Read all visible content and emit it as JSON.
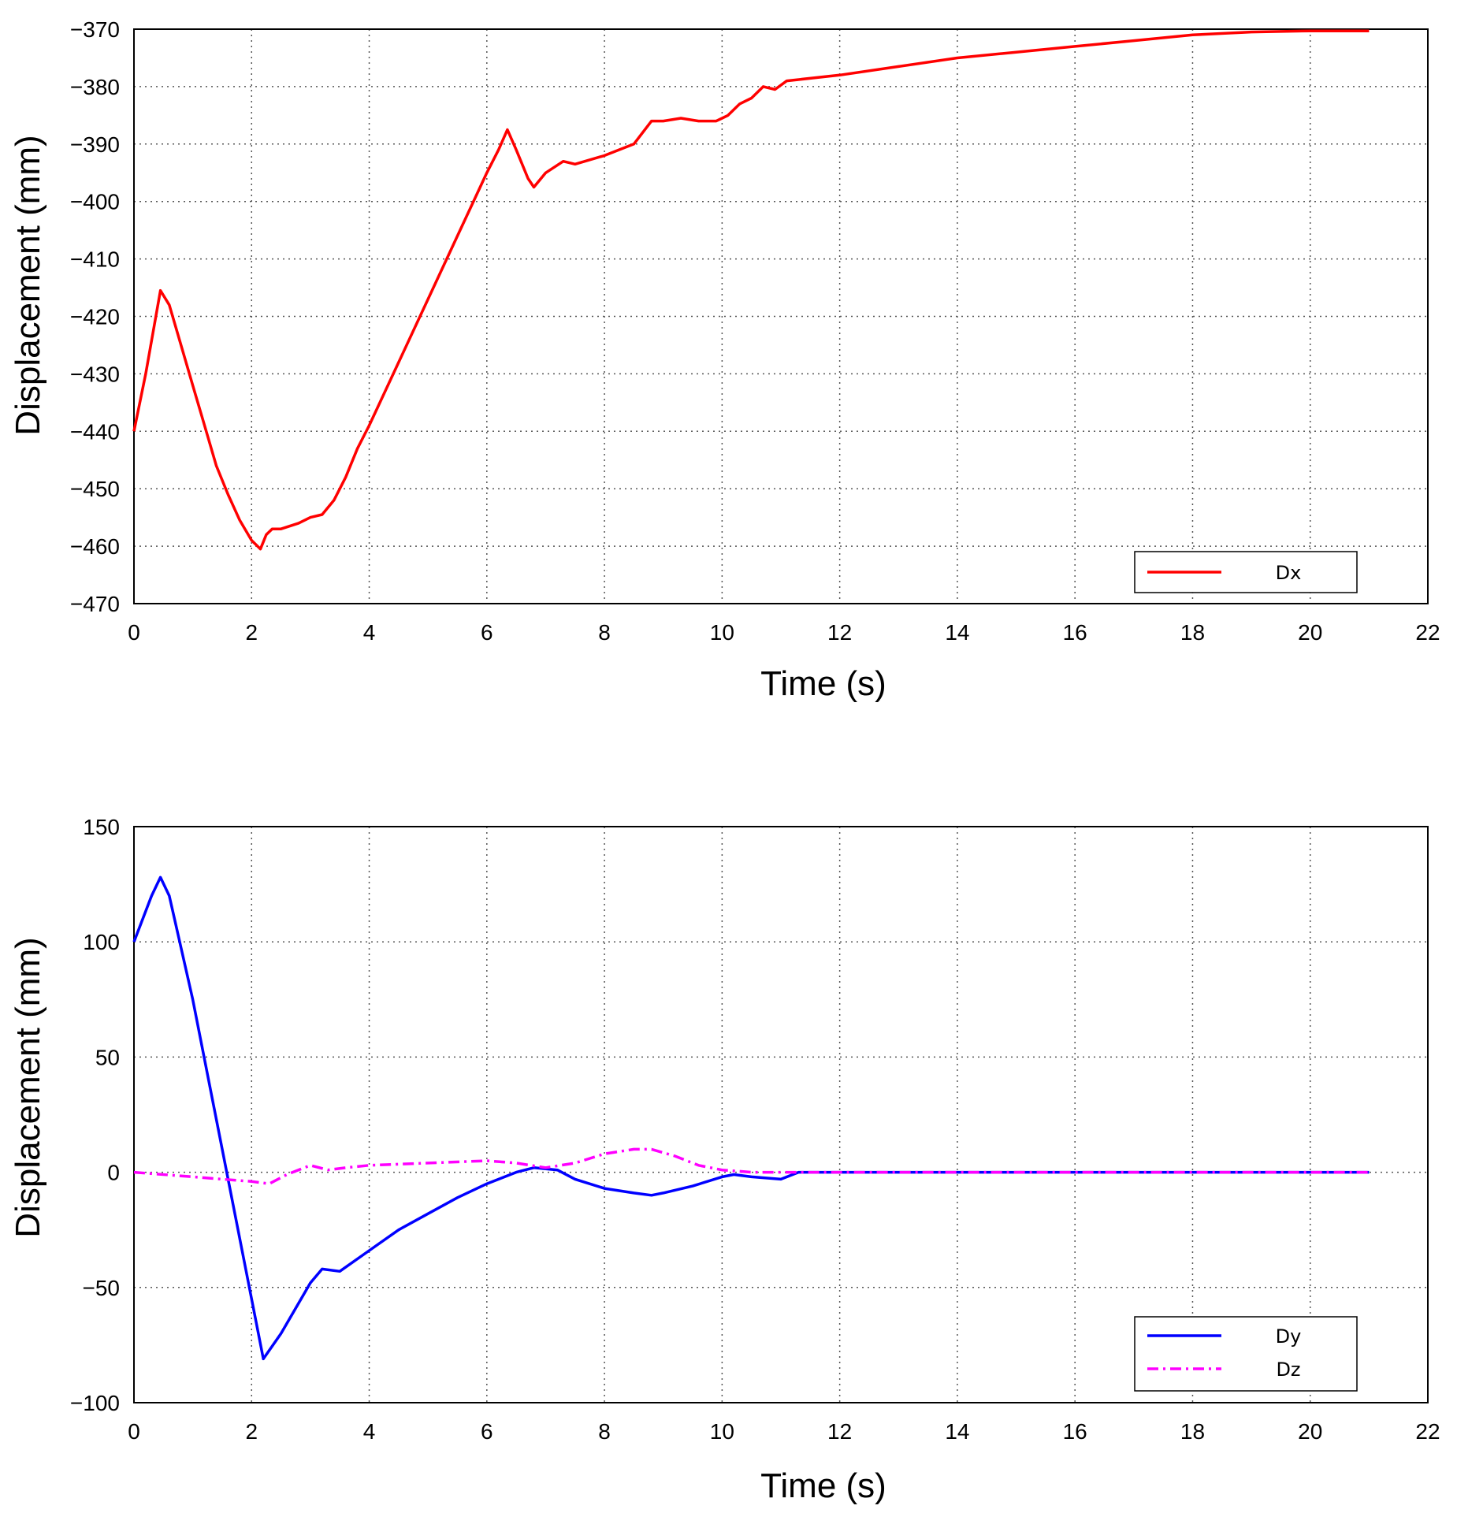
{
  "chart_data": [
    {
      "type": "line",
      "xlabel": "Time (s)",
      "ylabel": "Displacement (mm)",
      "xlim": [
        0,
        22
      ],
      "ylim": [
        -470,
        -370
      ],
      "xticks": [
        0,
        2,
        4,
        6,
        8,
        10,
        12,
        14,
        16,
        18,
        20,
        22
      ],
      "yticks": [
        -370,
        -380,
        -390,
        -400,
        -410,
        -420,
        -430,
        -440,
        -450,
        -460,
        -470
      ],
      "ytick_labels": [
        "−370",
        "−380",
        "−390",
        "−400",
        "−410",
        "−420",
        "−430",
        "−440",
        "−450",
        "−460",
        "−470"
      ],
      "grid": true,
      "legend_position": "bottom-right",
      "series": [
        {
          "name": "Dx",
          "color": "#ff0000",
          "style": "solid",
          "x": [
            0,
            0.2,
            0.45,
            0.6,
            0.8,
            1.0,
            1.2,
            1.4,
            1.6,
            1.8,
            2.0,
            2.15,
            2.25,
            2.35,
            2.5,
            2.8,
            3.0,
            3.2,
            3.4,
            3.6,
            3.8,
            4.0,
            4.5,
            5.0,
            5.5,
            6.0,
            6.2,
            6.35,
            6.5,
            6.7,
            6.8,
            7.0,
            7.3,
            7.5,
            8.0,
            8.5,
            8.8,
            9.0,
            9.3,
            9.6,
            9.9,
            10.0,
            10.1,
            10.3,
            10.5,
            10.7,
            10.9,
            11.1,
            12.0,
            13.0,
            14.0,
            15.0,
            16.0,
            17.0,
            18.0,
            19.0,
            20.0,
            21.0
          ],
          "y": [
            -440,
            -430,
            -415.5,
            -418,
            -425,
            -432,
            -439,
            -446,
            -451,
            -455.5,
            -459,
            -460.5,
            -458,
            -457,
            -457,
            -456,
            -455,
            -454.5,
            -452,
            -448,
            -443,
            -439,
            -428,
            -417,
            -406,
            -395,
            -391,
            -387.5,
            -391,
            -396,
            -397.5,
            -395,
            -393,
            -393.5,
            -392,
            -390,
            -386,
            -386,
            -385.5,
            -386,
            -386,
            -385.5,
            -385,
            -383,
            -382,
            -380,
            -380.5,
            -379,
            -378,
            -376.5,
            -375,
            -374,
            -373,
            -372,
            -371,
            -370.5,
            -370.3,
            -370.3
          ]
        }
      ]
    },
    {
      "type": "line",
      "xlabel": "Time (s)",
      "ylabel": "Displacement (mm)",
      "xlim": [
        0,
        22
      ],
      "ylim": [
        -100,
        150
      ],
      "xticks": [
        0,
        2,
        4,
        6,
        8,
        10,
        12,
        14,
        16,
        18,
        20,
        22
      ],
      "yticks": [
        150,
        100,
        50,
        0,
        -50,
        -100
      ],
      "ytick_labels": [
        "150",
        "100",
        "50",
        "0",
        "−50",
        "−100"
      ],
      "grid": true,
      "legend_position": "bottom-right",
      "series": [
        {
          "name": "Dy",
          "color": "#0000ff",
          "style": "solid",
          "x": [
            0,
            0.3,
            0.45,
            0.6,
            1.0,
            1.5,
            2.0,
            2.2,
            2.5,
            3.0,
            3.2,
            3.5,
            4.0,
            4.5,
            5.0,
            5.5,
            6.0,
            6.5,
            6.8,
            7.2,
            7.5,
            8.0,
            8.5,
            8.8,
            9.0,
            9.5,
            10.0,
            10.2,
            10.5,
            11.0,
            11.3,
            12.0,
            14.0,
            16.0,
            18.0,
            20.0,
            21.0
          ],
          "y": [
            100,
            120,
            128,
            120,
            75,
            10,
            -55,
            -81,
            -70,
            -48,
            -42,
            -43,
            -34,
            -25,
            -18,
            -11,
            -5,
            0,
            2,
            1,
            -3,
            -7,
            -9,
            -10,
            -9,
            -6,
            -2,
            -1,
            -2,
            -3,
            0,
            0,
            0,
            0,
            0,
            0,
            0
          ]
        },
        {
          "name": "Dz",
          "color": "#ff00ff",
          "style": "dashdot",
          "x": [
            0,
            1.0,
            1.5,
            2.0,
            2.3,
            2.6,
            3.0,
            3.3,
            3.6,
            4.0,
            5.0,
            6.0,
            6.5,
            7.0,
            7.5,
            8.0,
            8.5,
            8.8,
            9.2,
            9.6,
            10.0,
            10.5,
            11.0,
            12.0,
            14.0,
            16.0,
            18.0,
            20.0,
            21.0
          ],
          "y": [
            0,
            -2,
            -3,
            -4,
            -5,
            -1,
            3,
            1,
            2,
            3,
            4,
            5,
            4,
            2,
            4,
            8,
            10,
            10,
            7,
            3,
            1,
            0,
            0,
            0,
            0,
            0,
            0,
            0,
            0
          ]
        }
      ]
    }
  ]
}
